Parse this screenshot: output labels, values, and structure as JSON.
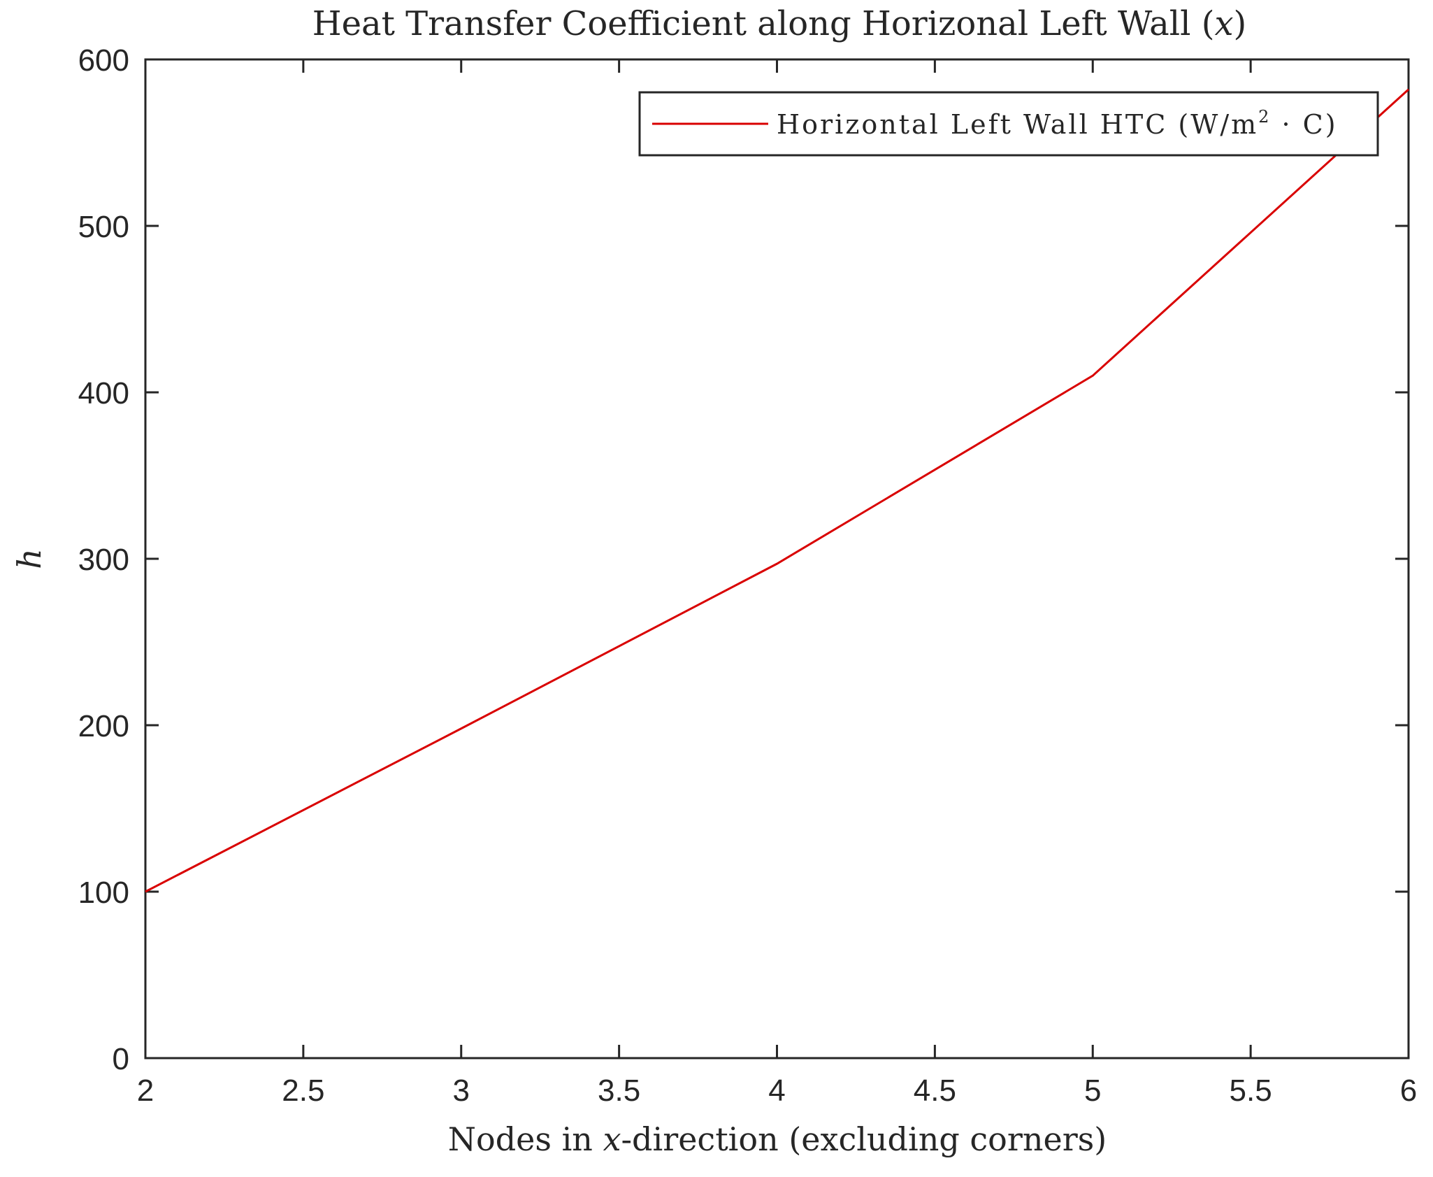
{
  "chart_data": {
    "type": "line",
    "title": "Heat Transfer Coefficient along Horizonal Left Wall (x)",
    "title_parts": {
      "main": "Heat Transfer Coefficient along Horizonal Left Wall (",
      "var": "x",
      "close": ")"
    },
    "xlabel": "Nodes in x-direction (excluding corners)",
    "xlabel_parts": {
      "pre": "Nodes in ",
      "var": "x",
      "post": "-direction (excluding corners)"
    },
    "ylabel": "h",
    "xlim": [
      2,
      6
    ],
    "ylim": [
      0,
      600
    ],
    "xticks": [
      "2",
      "2.5",
      "3",
      "3.5",
      "4",
      "4.5",
      "5",
      "5.5",
      "6"
    ],
    "yticks": [
      "0",
      "100",
      "200",
      "300",
      "400",
      "500",
      "600"
    ],
    "grid": false,
    "legend_position": "upper right",
    "x": [
      2,
      3,
      4,
      5,
      6
    ],
    "series": [
      {
        "name": "Horizontal Left Wall HTC (W/m^2 · C)",
        "color": "#d90000",
        "values": [
          100,
          198,
          297,
          410,
          582
        ]
      }
    ],
    "legend": {
      "label_pre": "Horizontal Left Wall HTC (W/m",
      "sup": "2",
      "label_post": " · C)"
    }
  }
}
